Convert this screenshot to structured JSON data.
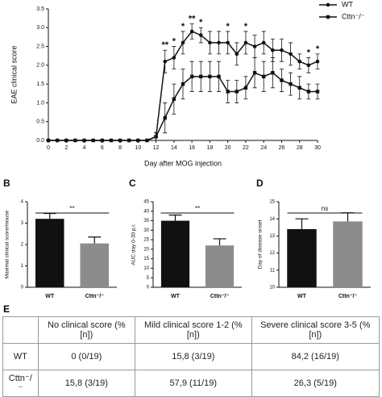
{
  "chart_data": [
    {
      "type": "line",
      "xlabel": "Day after MOG injection",
      "ylabel": "EAE clinical score",
      "x": [
        0,
        1,
        2,
        3,
        4,
        5,
        6,
        7,
        8,
        9,
        10,
        11,
        12,
        13,
        14,
        15,
        16,
        17,
        18,
        19,
        20,
        21,
        22,
        23,
        24,
        25,
        26,
        27,
        28,
        29,
        30
      ],
      "series": [
        {
          "name": "WT",
          "color": "#111111",
          "marker": "circle",
          "values": [
            0,
            0,
            0,
            0,
            0,
            0,
            0,
            0,
            0,
            0,
            0,
            0,
            0.1,
            2.1,
            2.2,
            2.6,
            2.9,
            2.8,
            2.6,
            2.6,
            2.6,
            2.3,
            2.6,
            2.5,
            2.6,
            2.4,
            2.4,
            2.3,
            2.1,
            2.0,
            2.1
          ],
          "errors": [
            0,
            0,
            0,
            0,
            0,
            0,
            0,
            0,
            0,
            0,
            0,
            0,
            0.1,
            0.3,
            0.3,
            0.3,
            0.2,
            0.2,
            0.3,
            0.3,
            0.3,
            0.3,
            0.3,
            0.3,
            0.3,
            0.3,
            0.3,
            0.3,
            0.2,
            0.2,
            0.2
          ]
        },
        {
          "name": "Cttn⁻/⁻",
          "color": "#111111",
          "marker": "square",
          "values": [
            0,
            0,
            0,
            0,
            0,
            0,
            0,
            0,
            0,
            0,
            0,
            0,
            0.1,
            0.6,
            1.1,
            1.5,
            1.7,
            1.7,
            1.7,
            1.7,
            1.3,
            1.3,
            1.4,
            1.8,
            1.7,
            1.8,
            1.6,
            1.5,
            1.4,
            1.3,
            1.3
          ],
          "errors": [
            0,
            0,
            0,
            0,
            0,
            0,
            0,
            0,
            0,
            0,
            0,
            0,
            0.1,
            0.4,
            0.4,
            0.4,
            0.4,
            0.4,
            0.4,
            0.4,
            0.3,
            0.3,
            0.3,
            0.4,
            0.4,
            0.4,
            0.3,
            0.3,
            0.3,
            0.2,
            0.2
          ]
        }
      ],
      "annotations": [
        {
          "x": 13,
          "text": "**"
        },
        {
          "x": 14,
          "text": "*"
        },
        {
          "x": 15,
          "text": "*"
        },
        {
          "x": 16,
          "text": "**"
        },
        {
          "x": 17,
          "text": "*"
        },
        {
          "x": 20,
          "text": "*"
        },
        {
          "x": 22,
          "text": "*"
        },
        {
          "x": 29,
          "text": "*"
        },
        {
          "x": 30,
          "text": "*"
        }
      ],
      "xlim": [
        0,
        30
      ],
      "xticks": [
        0,
        2,
        4,
        6,
        8,
        10,
        12,
        14,
        16,
        18,
        20,
        22,
        24,
        26,
        28,
        30
      ],
      "ylim": [
        0,
        3.5
      ],
      "yticks": [
        {
          "value": 0,
          "label": "0.0"
        },
        0.5,
        {
          "value": 1,
          "label": "1.0"
        },
        1.5,
        {
          "value": 2,
          "label": "2.0"
        },
        2.5,
        {
          "value": 3,
          "label": "3.0"
        },
        3.5
      ],
      "legend": "top-right"
    },
    {
      "type": "bar",
      "panel": "B",
      "ylabel": "Maximal clinical score/mouse",
      "categories": [
        "WT",
        "Cttn⁻/⁻"
      ],
      "values": [
        3.2,
        2.05
      ],
      "errors": [
        0.25,
        0.3
      ],
      "colors": [
        "#111111",
        "#8c8c8c"
      ],
      "significance": "**",
      "ylim": [
        0,
        4
      ],
      "yticks": [
        0,
        1,
        2,
        3,
        4
      ]
    },
    {
      "type": "bar",
      "panel": "C",
      "ylabel": "AUC day 0-30 p.i.",
      "categories": [
        "WT",
        "Cttn⁻/⁻"
      ],
      "values": [
        35,
        22
      ],
      "errors": [
        3,
        3.5
      ],
      "colors": [
        "#111111",
        "#8c8c8c"
      ],
      "significance": "**",
      "ylim": [
        0,
        45
      ],
      "yticks": [
        0,
        5,
        10,
        15,
        20,
        25,
        30,
        35,
        40,
        45
      ]
    },
    {
      "type": "bar",
      "panel": "D",
      "ylabel": "Day of disease onset",
      "categories": [
        "WT",
        "Cttn⁻/⁻"
      ],
      "values": [
        13.4,
        13.85
      ],
      "errors": [
        0.6,
        0.5
      ],
      "colors": [
        "#111111",
        "#8c8c8c"
      ],
      "significance": "ns",
      "ylim": [
        10,
        15
      ],
      "yticks": [
        10,
        11,
        12,
        13,
        14,
        15
      ]
    }
  ],
  "table": {
    "panel": "E",
    "header": [
      "No clinical score (% [n])",
      "Mild clinical score 1-2 (% [n])",
      "Severe clinical score 3-5 (% [n])"
    ],
    "rows": [
      [
        "WT",
        "0 (0/19)",
        "15,8 (3/19)",
        "84,2 (16/19)"
      ],
      [
        "Cttn⁻/⁻",
        "15,8 (3/19)",
        "57,9 (11/19)",
        "26,3 (5/19)"
      ]
    ]
  }
}
